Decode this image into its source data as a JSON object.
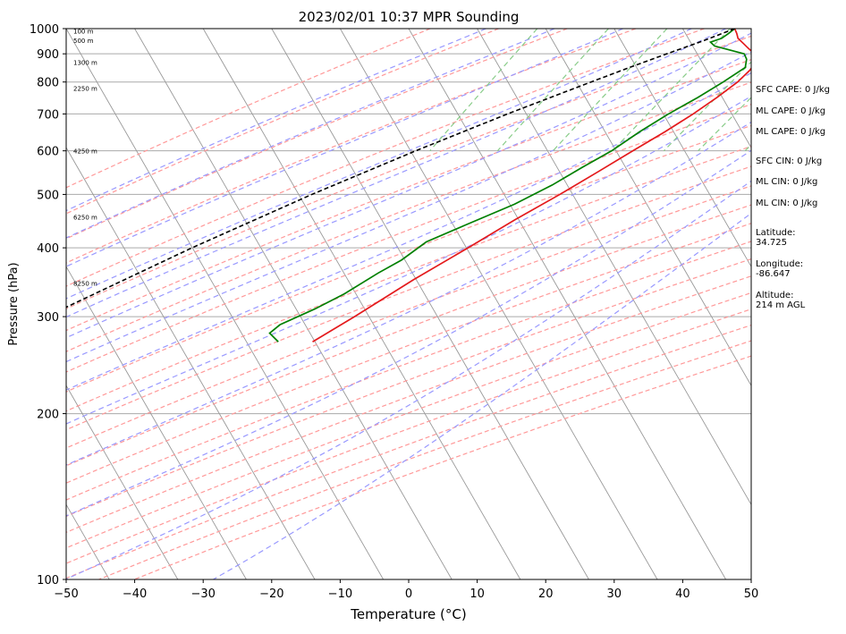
{
  "chart_data": {
    "type": "line",
    "subtype": "skew-t log-p",
    "title": "2023/02/01 10:37 MPR Sounding",
    "xlabel": "Temperature (°C)",
    "ylabel": "Pressure (hPa)",
    "xlim": [
      -50,
      50
    ],
    "ylim": [
      1000,
      100
    ],
    "y_scale": "log",
    "x_ticks": [
      "−50",
      "−40",
      "−30",
      "−20",
      "−10",
      "0",
      "10",
      "20",
      "30",
      "40",
      "50"
    ],
    "y_ticks": [
      "100",
      "200",
      "300",
      "400",
      "500",
      "600",
      "700",
      "800",
      "900",
      "1000"
    ],
    "grid": true,
    "height_labels": [
      {
        "pressure": 345,
        "text": "8250 m"
      },
      {
        "pressure": 455,
        "text": "6250 m"
      },
      {
        "pressure": 600,
        "text": "4250 m"
      },
      {
        "pressure": 780,
        "text": "2250 m"
      },
      {
        "pressure": 870,
        "text": "1300 m"
      },
      {
        "pressure": 953,
        "text": "500 m"
      },
      {
        "pressure": 990,
        "text": "100 m"
      }
    ],
    "series": [
      {
        "role": "temperature",
        "color": "#e41a1c",
        "points": [
          {
            "p": 270,
            "t": -34
          },
          {
            "p": 300,
            "t": -30
          },
          {
            "p": 350,
            "t": -24.5
          },
          {
            "p": 400,
            "t": -19.2
          },
          {
            "p": 450,
            "t": -14.7
          },
          {
            "p": 500,
            "t": -10.3
          },
          {
            "p": 550,
            "t": -6.6
          },
          {
            "p": 600,
            "t": -3.3
          },
          {
            "p": 650,
            "t": -0.2
          },
          {
            "p": 700,
            "t": 2.4
          },
          {
            "p": 750,
            "t": 4.5
          },
          {
            "p": 800,
            "t": 6.2
          },
          {
            "p": 840,
            "t": 7.0
          },
          {
            "p": 870,
            "t": 7.2
          },
          {
            "p": 900,
            "t": 6.3
          },
          {
            "p": 920,
            "t": 5.0
          },
          {
            "p": 940,
            "t": 3.8
          },
          {
            "p": 960,
            "t": 2.6
          },
          {
            "p": 980,
            "t": 2.0
          },
          {
            "p": 1000,
            "t": 1.3
          }
        ]
      },
      {
        "role": "dewpoint",
        "color": "#008000",
        "points": [
          {
            "p": 270,
            "t": -39
          },
          {
            "p": 280,
            "t": -41
          },
          {
            "p": 290,
            "t": -40.2
          },
          {
            "p": 310,
            "t": -36.4
          },
          {
            "p": 330,
            "t": -33.4
          },
          {
            "p": 360,
            "t": -30.2
          },
          {
            "p": 380,
            "t": -27.9
          },
          {
            "p": 410,
            "t": -25.8
          },
          {
            "p": 440,
            "t": -21.5
          },
          {
            "p": 480,
            "t": -16.1
          },
          {
            "p": 520,
            "t": -12.2
          },
          {
            "p": 560,
            "t": -9.3
          },
          {
            "p": 600,
            "t": -6.4
          },
          {
            "p": 650,
            "t": -3.9
          },
          {
            "p": 700,
            "t": -1.2
          },
          {
            "p": 750,
            "t": 1.7
          },
          {
            "p": 800,
            "t": 4.1
          },
          {
            "p": 850,
            "t": 6.1
          },
          {
            "p": 880,
            "t": 5.6
          },
          {
            "p": 900,
            "t": 4.8
          },
          {
            "p": 915,
            "t": 2.3
          },
          {
            "p": 930,
            "t": -0.2
          },
          {
            "p": 945,
            "t": -1.1
          },
          {
            "p": 960,
            "t": 0.2
          },
          {
            "p": 980,
            "t": 0.8
          },
          {
            "p": 1000,
            "t": 1.3
          }
        ]
      },
      {
        "role": "parcel profile",
        "color": "#000000",
        "dash": "5,3",
        "points": [
          {
            "p": 1000,
            "t": 1.3
          },
          {
            "p": 950,
            "t": -2.3
          },
          {
            "p": 900,
            "t": -6.5
          },
          {
            "p": 850,
            "t": -10.8
          },
          {
            "p": 800,
            "t": -15.2
          },
          {
            "p": 700,
            "t": -24.7
          },
          {
            "p": 600,
            "t": -35.0
          },
          {
            "p": 500,
            "t": -46.5
          },
          {
            "p": 400,
            "t": -59.5
          },
          {
            "p": 300,
            "t": -75.0
          },
          {
            "p": 275,
            "t": -79.0
          }
        ]
      }
    ],
    "reference_lines": {
      "isotherms": {
        "color": "#999999",
        "from": -140,
        "to": 50,
        "step": 10
      },
      "dry_adiabats": {
        "color": "#ff9999",
        "dash": "5,3",
        "theta_k": [
          230,
          240,
          250,
          260,
          270,
          280,
          290,
          300,
          310,
          320,
          330,
          340,
          350,
          360,
          370,
          380,
          390,
          400,
          410,
          420,
          430,
          440,
          450
        ]
      },
      "moist_adiabats": {
        "color": "#9999ff",
        "dash": "6,4",
        "start_t_c": [
          -35,
          -25,
          -15,
          -5,
          0,
          5,
          10,
          15,
          20,
          25,
          30,
          35,
          40
        ]
      },
      "mixing_ratio": {
        "color": "#88cc88",
        "dash": "6,4",
        "g_per_kg": [
          0.4,
          1,
          2,
          4,
          7,
          10,
          16,
          24,
          32
        ],
        "top_hpa": 600
      }
    },
    "annotations": [
      "SFC CAPE: 0 J/kg",
      "ML CAPE: 0 J/kg",
      "ML CAPE: 0 J/kg",
      "SFC CIN: 0 J/kg",
      "ML CIN: 0 J/kg",
      "ML CIN: 0 J/kg",
      "Latitude:\n34.725",
      "Longitude:\n-86.647",
      "Altitude:\n214 m AGL"
    ]
  }
}
